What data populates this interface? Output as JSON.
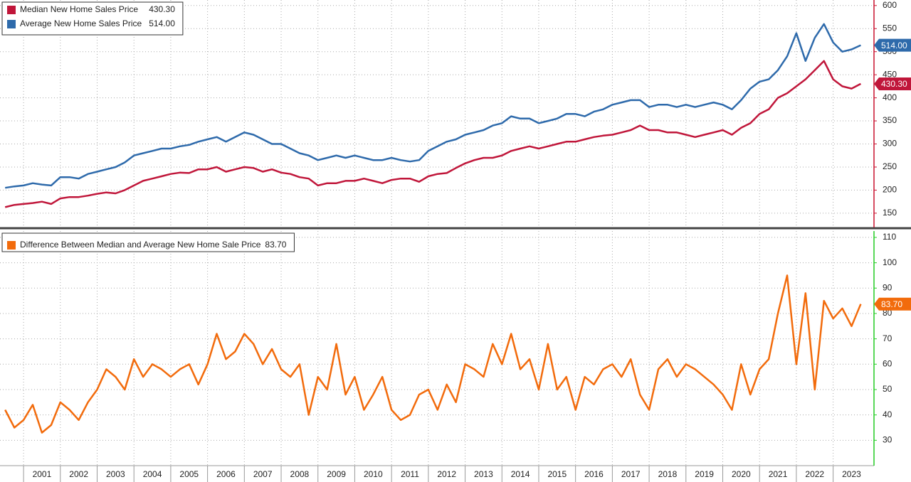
{
  "chart_data": [
    {
      "type": "line",
      "x": [
        2000.5,
        2000.75,
        2001,
        2001.25,
        2001.5,
        2001.75,
        2002,
        2002.25,
        2002.5,
        2002.75,
        2003,
        2003.25,
        2003.5,
        2003.75,
        2004,
        2004.25,
        2004.5,
        2004.75,
        2005,
        2005.25,
        2005.5,
        2005.75,
        2006,
        2006.25,
        2006.5,
        2006.75,
        2007,
        2007.25,
        2007.5,
        2007.75,
        2008,
        2008.25,
        2008.5,
        2008.75,
        2009,
        2009.25,
        2009.5,
        2009.75,
        2010,
        2010.25,
        2010.5,
        2010.75,
        2011,
        2011.25,
        2011.5,
        2011.75,
        2012,
        2012.25,
        2012.5,
        2012.75,
        2013,
        2013.25,
        2013.5,
        2013.75,
        2014,
        2014.25,
        2014.5,
        2014.75,
        2015,
        2015.25,
        2015.5,
        2015.75,
        2016,
        2016.25,
        2016.5,
        2016.75,
        2017,
        2017.25,
        2017.5,
        2017.75,
        2018,
        2018.25,
        2018.5,
        2018.75,
        2019,
        2019.25,
        2019.5,
        2019.75,
        2020,
        2020.25,
        2020.5,
        2020.75,
        2021,
        2021.25,
        2021.5,
        2021.75,
        2022,
        2022.25,
        2022.5,
        2022.75,
        2023,
        2023.25,
        2023.5,
        2023.75
      ],
      "series": [
        {
          "name": "Median New Home Sales Price",
          "color": "#c0163a",
          "values": [
            163,
            168,
            170,
            172,
            175,
            170,
            182,
            185,
            185,
            188,
            192,
            195,
            193,
            200,
            210,
            220,
            225,
            230,
            235,
            238,
            237,
            245,
            245,
            250,
            240,
            245,
            250,
            248,
            240,
            245,
            238,
            235,
            228,
            225,
            210,
            215,
            215,
            220,
            220,
            225,
            220,
            215,
            222,
            225,
            225,
            218,
            230,
            235,
            237,
            248,
            258,
            265,
            270,
            270,
            275,
            285,
            290,
            295,
            290,
            295,
            300,
            305,
            305,
            310,
            315,
            318,
            320,
            325,
            330,
            340,
            330,
            330,
            325,
            325,
            320,
            315,
            320,
            325,
            330,
            320,
            335,
            345,
            365,
            375,
            400,
            410,
            425,
            440,
            460,
            480,
            440,
            425,
            420,
            430.3
          ],
          "value_labels": [
            null,
            null,
            null,
            null,
            null,
            null,
            null,
            null,
            null,
            null,
            null,
            null,
            null,
            null,
            null,
            null,
            null,
            null,
            null,
            null,
            null,
            null,
            null,
            null,
            null,
            null,
            null,
            null,
            null,
            null,
            null,
            null,
            null,
            null,
            null,
            null,
            null,
            null,
            null,
            null,
            null,
            null,
            null,
            null,
            null,
            null,
            null,
            null,
            null,
            null,
            null,
            null,
            null,
            null,
            null,
            null,
            null,
            null,
            null,
            null,
            null,
            null,
            null,
            null,
            null,
            null,
            null,
            null,
            null,
            null,
            null,
            null,
            null,
            null,
            null,
            null,
            null,
            null,
            null,
            null,
            null,
            null,
            null,
            null,
            null,
            null,
            null,
            null,
            null,
            null,
            null,
            null,
            null,
            "430.30"
          ]
        },
        {
          "name": "Average New Home Sales Price",
          "color": "#2e6aab",
          "values": [
            205,
            208,
            210,
            215,
            212,
            210,
            228,
            228,
            225,
            235,
            240,
            245,
            250,
            260,
            275,
            280,
            285,
            290,
            290,
            295,
            298,
            305,
            310,
            315,
            305,
            315,
            325,
            320,
            310,
            300,
            300,
            290,
            280,
            275,
            265,
            270,
            275,
            270,
            275,
            270,
            265,
            265,
            270,
            265,
            262,
            265,
            285,
            295,
            305,
            310,
            320,
            325,
            330,
            340,
            345,
            360,
            355,
            355,
            345,
            350,
            355,
            365,
            365,
            360,
            370,
            375,
            385,
            390,
            395,
            395,
            380,
            385,
            385,
            380,
            385,
            380,
            385,
            390,
            385,
            375,
            395,
            420,
            435,
            440,
            460,
            490,
            540,
            480,
            530,
            560,
            520,
            500,
            505,
            514
          ],
          "value_labels": [
            null,
            null,
            null,
            null,
            null,
            null,
            null,
            null,
            null,
            null,
            null,
            null,
            null,
            null,
            null,
            null,
            null,
            null,
            null,
            null,
            null,
            null,
            null,
            null,
            null,
            null,
            null,
            null,
            null,
            null,
            null,
            null,
            null,
            null,
            null,
            null,
            null,
            null,
            null,
            null,
            null,
            null,
            null,
            null,
            null,
            null,
            null,
            null,
            null,
            null,
            null,
            null,
            null,
            null,
            null,
            null,
            null,
            null,
            null,
            null,
            null,
            null,
            null,
            null,
            null,
            null,
            null,
            null,
            null,
            null,
            null,
            null,
            null,
            null,
            null,
            null,
            null,
            null,
            null,
            null,
            null,
            null,
            null,
            null,
            null,
            null,
            null,
            null,
            null,
            null,
            null,
            null,
            null,
            "514.00"
          ]
        }
      ],
      "xlim": [
        2000.36,
        2024.11
      ],
      "ylim": [
        119,
        612
      ],
      "yticks": [
        150,
        200,
        250,
        300,
        350,
        400,
        450,
        500,
        550,
        600
      ],
      "axis_color": "#c8102e",
      "grid": true
    },
    {
      "type": "line",
      "x": [
        2000.5,
        2000.75,
        2001,
        2001.25,
        2001.5,
        2001.75,
        2002,
        2002.25,
        2002.5,
        2002.75,
        2003,
        2003.25,
        2003.5,
        2003.75,
        2004,
        2004.25,
        2004.5,
        2004.75,
        2005,
        2005.25,
        2005.5,
        2005.75,
        2006,
        2006.25,
        2006.5,
        2006.75,
        2007,
        2007.25,
        2007.5,
        2007.75,
        2008,
        2008.25,
        2008.5,
        2008.75,
        2009,
        2009.25,
        2009.5,
        2009.75,
        2010,
        2010.25,
        2010.5,
        2010.75,
        2011,
        2011.25,
        2011.5,
        2011.75,
        2012,
        2012.25,
        2012.5,
        2012.75,
        2013,
        2013.25,
        2013.5,
        2013.75,
        2014,
        2014.25,
        2014.5,
        2014.75,
        2015,
        2015.25,
        2015.5,
        2015.75,
        2016,
        2016.25,
        2016.5,
        2016.75,
        2017,
        2017.25,
        2017.5,
        2017.75,
        2018,
        2018.25,
        2018.5,
        2018.75,
        2019,
        2019.25,
        2019.5,
        2019.75,
        2020,
        2020.25,
        2020.5,
        2020.75,
        2021,
        2021.25,
        2021.5,
        2021.75,
        2022,
        2022.25,
        2022.5,
        2022.75,
        2023,
        2023.25,
        2023.5,
        2023.75
      ],
      "series": [
        {
          "name": "Difference Between Median and Average New Home Sale Price",
          "color": "#f26b0c",
          "values": [
            42,
            35,
            38,
            44,
            33,
            36,
            45,
            42,
            38,
            45,
            50,
            58,
            55,
            50,
            62,
            55,
            60,
            58,
            55,
            58,
            60,
            52,
            60,
            72,
            62,
            65,
            72,
            68,
            60,
            66,
            58,
            55,
            60,
            40,
            55,
            50,
            68,
            48,
            55,
            42,
            48,
            55,
            42,
            38,
            40,
            48,
            50,
            42,
            52,
            45,
            60,
            58,
            55,
            68,
            60,
            72,
            58,
            62,
            50,
            68,
            50,
            55,
            42,
            55,
            52,
            58,
            60,
            55,
            62,
            48,
            42,
            58,
            62,
            55,
            60,
            58,
            55,
            52,
            48,
            42,
            60,
            48,
            58,
            62,
            80,
            95,
            60,
            88,
            50,
            85,
            78,
            82,
            75,
            83.7
          ],
          "value_labels": [
            null,
            null,
            null,
            null,
            null,
            null,
            null,
            null,
            null,
            null,
            null,
            null,
            null,
            null,
            null,
            null,
            null,
            null,
            null,
            null,
            null,
            null,
            null,
            null,
            null,
            null,
            null,
            null,
            null,
            null,
            null,
            null,
            null,
            null,
            null,
            null,
            null,
            null,
            null,
            null,
            null,
            null,
            null,
            null,
            null,
            null,
            null,
            null,
            null,
            null,
            null,
            null,
            null,
            null,
            null,
            null,
            null,
            null,
            null,
            null,
            null,
            null,
            null,
            null,
            null,
            null,
            null,
            null,
            null,
            null,
            null,
            null,
            null,
            null,
            null,
            null,
            null,
            null,
            null,
            null,
            null,
            null,
            null,
            null,
            null,
            null,
            null,
            null,
            null,
            null,
            null,
            null,
            null,
            "83.70"
          ]
        }
      ],
      "xlim": [
        2000.36,
        2024.11
      ],
      "xticks": [
        2001,
        2002,
        2003,
        2004,
        2005,
        2006,
        2007,
        2008,
        2009,
        2010,
        2011,
        2012,
        2013,
        2014,
        2015,
        2016,
        2017,
        2018,
        2019,
        2020,
        2021,
        2022,
        2023
      ],
      "ylim": [
        20,
        112.5
      ],
      "yticks": [
        30,
        40,
        50,
        60,
        70,
        80,
        90,
        100,
        110
      ],
      "axis_color": "#22cc22",
      "grid": true
    }
  ]
}
